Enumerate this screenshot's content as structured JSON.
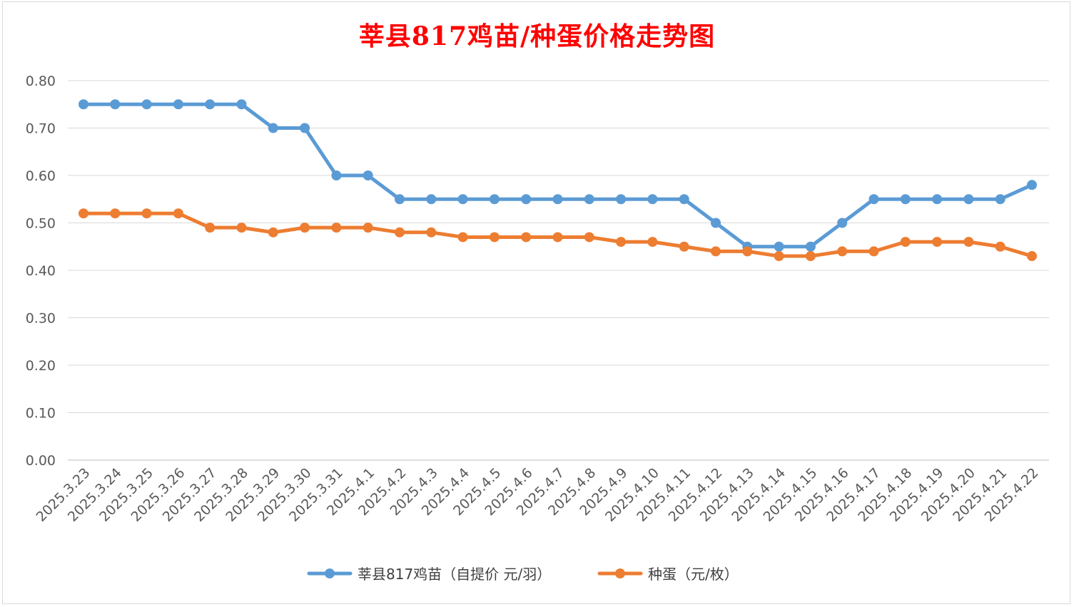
{
  "chart_data": {
    "type": "line",
    "title": "莘县817鸡苗/种蛋价格走势图",
    "categories": [
      "2025.3.23",
      "2025.3.24",
      "2025.3.25",
      "2025.3.26",
      "2025.3.27",
      "2025.3.28",
      "2025.3.29",
      "2025.3.30",
      "2025.3.31",
      "2025.4.1",
      "2025.4.2",
      "2025.4.3",
      "2025.4.4",
      "2025.4.5",
      "2025.4.6",
      "2025.4.7",
      "2025.4.8",
      "2025.4.9",
      "2025.4.10",
      "2025.4.11",
      "2025.4.12",
      "2025.4.13",
      "2025.4.14",
      "2025.4.15",
      "2025.4.16",
      "2025.4.17",
      "2025.4.18",
      "2025.4.19",
      "2025.4.20",
      "2025.4.21",
      "2025.4.22"
    ],
    "series": [
      {
        "name": "莘县817鸡苗（自提价 元/羽）",
        "color": "#5b9bd5",
        "values": [
          0.75,
          0.75,
          0.75,
          0.75,
          0.75,
          0.75,
          0.7,
          0.7,
          0.6,
          0.6,
          0.55,
          0.55,
          0.55,
          0.55,
          0.55,
          0.55,
          0.55,
          0.55,
          0.55,
          0.55,
          0.5,
          0.45,
          0.45,
          0.45,
          0.5,
          0.55,
          0.55,
          0.55,
          0.55,
          0.55,
          0.58
        ]
      },
      {
        "name": "种蛋（元/枚）",
        "color": "#ed7d31",
        "values": [
          0.52,
          0.52,
          0.52,
          0.52,
          0.49,
          0.49,
          0.48,
          0.49,
          0.49,
          0.49,
          0.48,
          0.48,
          0.47,
          0.47,
          0.47,
          0.47,
          0.47,
          0.46,
          0.46,
          0.45,
          0.44,
          0.44,
          0.43,
          0.43,
          0.44,
          0.44,
          0.46,
          0.46,
          0.46,
          0.45,
          0.43
        ]
      }
    ],
    "yticks": [
      "0.00",
      "0.10",
      "0.20",
      "0.30",
      "0.40",
      "0.50",
      "0.60",
      "0.70",
      "0.80"
    ],
    "ylim": [
      0,
      0.8
    ],
    "grid": true,
    "legend": "bottom",
    "title_color": "#ff0000"
  }
}
